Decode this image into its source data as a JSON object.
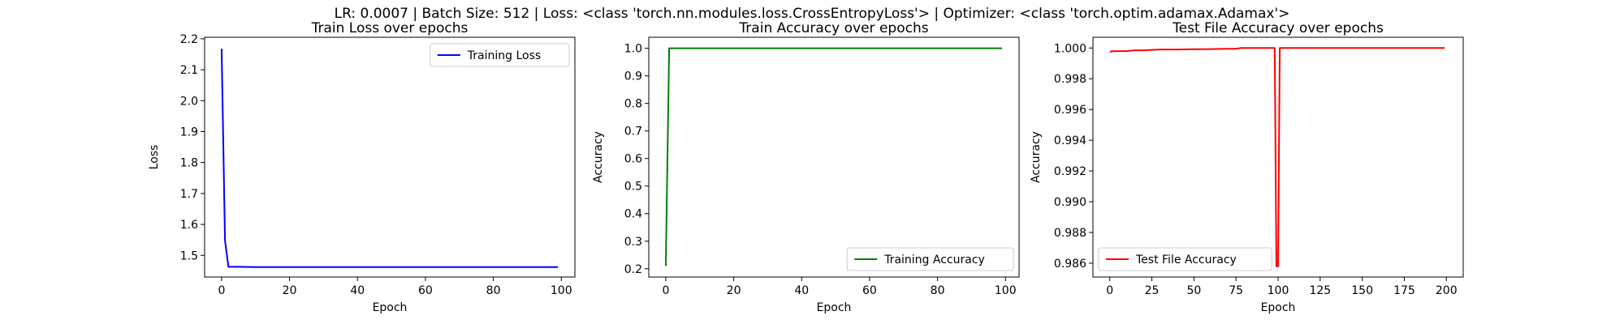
{
  "figure": {
    "suptitle": "LR: 0.0007 | Batch Size: 512 | Loss: <class 'torch.nn.modules.loss.CrossEntropyLoss'> | Optimizer: <class 'torch.optim.adamax.Adamax'>"
  },
  "chart_data": [
    {
      "type": "line",
      "title": "Train Loss over epochs",
      "xlabel": "Epoch",
      "ylabel": "Loss",
      "xlim": [
        -5,
        104
      ],
      "ylim": [
        1.43,
        2.205
      ],
      "xticks": [
        0,
        20,
        40,
        60,
        80,
        100
      ],
      "yticks": [
        1.5,
        1.6,
        1.7,
        1.8,
        1.9,
        2.0,
        2.1,
        2.2
      ],
      "xtick_labels": [
        "0",
        "20",
        "40",
        "60",
        "80",
        "100"
      ],
      "ytick_labels": [
        "1.5",
        "1.6",
        "1.7",
        "1.8",
        "1.9",
        "2.0",
        "2.1",
        "2.2"
      ],
      "legend_position": "upper right",
      "grid": false,
      "series": [
        {
          "name": "Training Loss",
          "color": "#0000ff",
          "x": [
            0,
            1,
            2,
            3,
            5,
            10,
            20,
            40,
            60,
            80,
            99
          ],
          "y": [
            2.168,
            1.548,
            1.463,
            1.463,
            1.463,
            1.462,
            1.462,
            1.462,
            1.462,
            1.462,
            1.462
          ]
        }
      ]
    },
    {
      "type": "line",
      "title": "Train Accuracy over epochs",
      "xlabel": "Epoch",
      "ylabel": "Accuracy",
      "xlim": [
        -5,
        104
      ],
      "ylim": [
        0.17,
        1.04
      ],
      "xticks": [
        0,
        20,
        40,
        60,
        80,
        100
      ],
      "yticks": [
        0.2,
        0.3,
        0.4,
        0.5,
        0.6,
        0.7,
        0.8,
        0.9,
        1.0
      ],
      "xtick_labels": [
        "0",
        "20",
        "40",
        "60",
        "80",
        "100"
      ],
      "ytick_labels": [
        "0.2",
        "0.3",
        "0.4",
        "0.5",
        "0.6",
        "0.7",
        "0.8",
        "0.9",
        "1.0"
      ],
      "legend_position": "lower right",
      "grid": false,
      "series": [
        {
          "name": "Training Accuracy",
          "color": "#008000",
          "x": [
            0,
            1,
            2,
            5,
            10,
            20,
            40,
            60,
            80,
            99
          ],
          "y": [
            0.21,
            1.0,
            1.0,
            1.0,
            1.0,
            1.0,
            1.0,
            1.0,
            1.0,
            1.0
          ]
        }
      ]
    },
    {
      "type": "line",
      "title": "Test File Accuracy over epochs",
      "xlabel": "Epoch",
      "ylabel": "Accuracy",
      "xlim": [
        -10,
        210
      ],
      "ylim": [
        0.9851,
        1.0007
      ],
      "xticks": [
        0,
        25,
        50,
        75,
        100,
        125,
        150,
        175,
        200
      ],
      "yticks": [
        0.986,
        0.988,
        0.99,
        0.992,
        0.994,
        0.996,
        0.998,
        1.0
      ],
      "xtick_labels": [
        "0",
        "25",
        "50",
        "75",
        "100",
        "125",
        "150",
        "175",
        "200"
      ],
      "ytick_labels": [
        "0.986",
        "0.988",
        "0.990",
        "0.992",
        "0.994",
        "0.996",
        "0.998",
        "1.000"
      ],
      "legend_position": "lower left",
      "grid": false,
      "series": [
        {
          "name": "Test File Accuracy",
          "color": "#ff0000",
          "x": [
            0,
            2,
            5,
            10,
            15,
            20,
            30,
            40,
            50,
            60,
            70,
            75,
            78,
            85,
            90,
            98,
            99,
            100,
            101,
            102,
            110,
            125,
            150,
            175,
            199
          ],
          "y": [
            0.99975,
            0.9998,
            0.9998,
            0.9998,
            0.99985,
            0.99985,
            0.9999,
            0.9999,
            0.99992,
            0.99993,
            0.99995,
            0.99995,
            1.0,
            1.0,
            1.0,
            1.0,
            0.9858,
            0.9858,
            1.0,
            1.0,
            1.0,
            1.0,
            1.0,
            1.0,
            1.0
          ]
        }
      ]
    }
  ]
}
